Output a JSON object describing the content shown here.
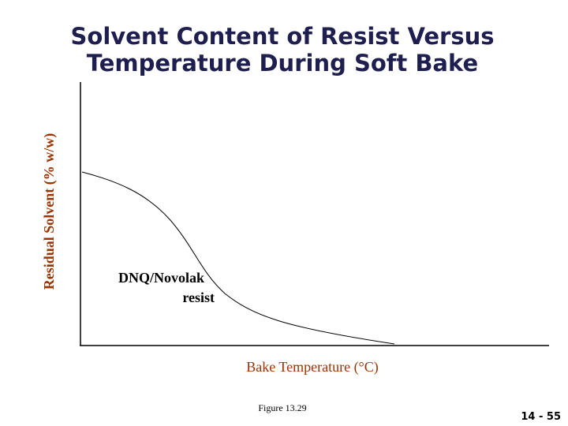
{
  "title": {
    "line1": "Solvent Content of Resist Versus",
    "line2": "Temperature During Soft Bake"
  },
  "axes": {
    "y_label": "Residual Solvent (% w/w)",
    "x_label": "Bake Temperature (°C)"
  },
  "curve_label": {
    "line1": "DNQ/Novolak",
    "line2": "resist"
  },
  "figure": "Figure 13.29",
  "page_number": "14 - 55"
}
